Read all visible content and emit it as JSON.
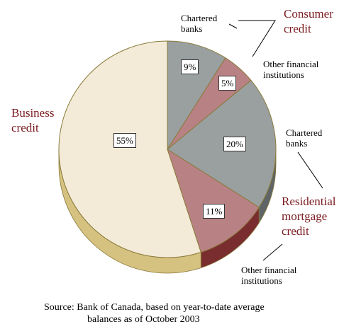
{
  "chart_data": {
    "type": "pie",
    "slices": [
      {
        "label": "Chartered banks",
        "group": "Consumer credit",
        "value": 9,
        "value_label": "9%",
        "color": "#9aa0a0",
        "side": "#5f6566"
      },
      {
        "label": "Other financial institutions",
        "group": "Consumer credit",
        "value": 5,
        "value_label": "5%",
        "color": "#b88284",
        "side": "#7a3234"
      },
      {
        "label": "Chartered banks",
        "group": "Residential mortgage credit",
        "value": 20,
        "value_label": "20%",
        "color": "#9aa0a0",
        "side": "#5f6566"
      },
      {
        "label": "Other financial institutions",
        "group": "Residential mortgage credit",
        "value": 11,
        "value_label": "11%",
        "color": "#b88284",
        "side": "#7a2d2f"
      },
      {
        "label": "",
        "group": "Business credit",
        "value": 55,
        "value_label": "55%",
        "color": "#f3ebd8",
        "side": "#d6c280"
      }
    ],
    "categories": {
      "consumer": "Consumer credit",
      "residential": "Residential mortgage credit",
      "business": "Business credit"
    }
  },
  "labels": {
    "consumer_l1": "Consumer",
    "consumer_l2": "credit",
    "business_l1": "Business",
    "business_l2": "credit",
    "residential_l1": "Residential",
    "residential_l2": "mortgage",
    "residential_l3": "credit",
    "cb_top_l1": "Chartered",
    "cb_top_l2": "banks",
    "ofi_top_l1": "Other financial",
    "ofi_top_l2": "institutions",
    "cb_right_l1": "Chartered",
    "cb_right_l2": "banks",
    "ofi_bottom_l1": "Other financial",
    "ofi_bottom_l2": "institutions"
  },
  "source": {
    "line1": "Source:  Bank of Canada, based on year-to-date average",
    "line2": "balances as of October 2003"
  },
  "colors": {
    "category_text": "#7a1a1f",
    "outline": "#8a7a3a"
  }
}
